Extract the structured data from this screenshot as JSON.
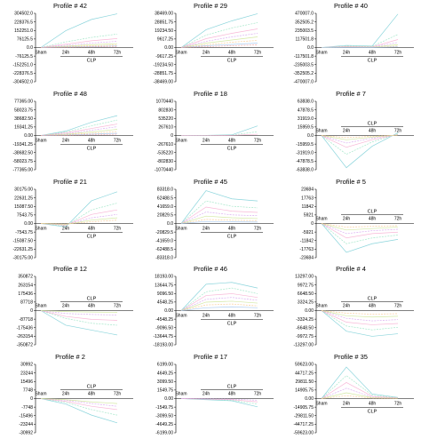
{
  "palette": [
    "#7fd0d8",
    "#9fe6c6",
    "#f7b0d3",
    "#d8a6f0",
    "#cfe59a",
    "#f9c98f",
    "#a6c8f0",
    "#f5a0a0",
    "#b4b0f0",
    "#9fd6ef",
    "#c8a2e8",
    "#ea8fd2"
  ],
  "chart_data": [
    {
      "type": "line",
      "title": "Profile # 42",
      "categories": [
        "Sham",
        "24h",
        "48h",
        "72h"
      ],
      "group_label": "CLP",
      "group_span": [
        "24h",
        "72h"
      ],
      "ylim": [
        -304502.0,
        304502.0
      ],
      "y_ticks": [
        "304502.0",
        "228376.5",
        "152251.0",
        "76125.5",
        "0.0",
        "-76125.5",
        "-152251.0",
        "-228376.5",
        "-304502.0"
      ],
      "zero_index": 4,
      "series": [
        {
          "values": [
            0,
            150000,
            250000,
            300000
          ]
        },
        {
          "values": [
            0,
            50000,
            90000,
            120000
          ]
        },
        {
          "values": [
            0,
            30000,
            60000,
            80000
          ]
        },
        {
          "values": [
            0,
            20000,
            40000,
            55000
          ]
        },
        {
          "values": [
            0,
            12000,
            25000,
            35000
          ]
        },
        {
          "values": [
            0,
            8000,
            15000,
            22000
          ]
        },
        {
          "values": [
            0,
            5000,
            9000,
            14000
          ]
        },
        {
          "values": [
            0,
            3000,
            6000,
            8000
          ]
        }
      ]
    },
    {
      "type": "line",
      "title": "Profile # 29",
      "categories": [
        "Sham",
        "24h",
        "48h",
        "72h"
      ],
      "group_label": "CLP",
      "group_span": [
        "24h",
        "72h"
      ],
      "ylim": [
        -38469.0,
        38469.0
      ],
      "y_ticks": [
        "38469.00",
        "28851.75",
        "19234.50",
        "9617.25",
        "0.00",
        "-9617.25",
        "-19234.50",
        "-28851.75",
        "-38469.00"
      ],
      "zero_index": 4,
      "series": [
        {
          "values": [
            0,
            20000,
            30000,
            38000
          ]
        },
        {
          "values": [
            0,
            14000,
            22000,
            28000
          ]
        },
        {
          "values": [
            0,
            10000,
            16000,
            21000
          ]
        },
        {
          "values": [
            0,
            7000,
            12000,
            16000
          ]
        },
        {
          "values": [
            0,
            5000,
            8500,
            12000
          ]
        },
        {
          "values": [
            0,
            3000,
            6000,
            8000
          ]
        },
        {
          "values": [
            0,
            2000,
            3500,
            5000
          ]
        },
        {
          "values": [
            0,
            1000,
            2000,
            3000
          ]
        }
      ]
    },
    {
      "type": "line",
      "title": "Profile # 40",
      "categories": [
        "Sham",
        "24h",
        "48h",
        "72h"
      ],
      "group_label": "CLP",
      "group_span": [
        "24h",
        "72h"
      ],
      "ylim": [
        -470007.0,
        470007.0
      ],
      "y_ticks": [
        "470007.0",
        "352505.2",
        "235003.5",
        "117501.8",
        "0.0",
        "-117501.8",
        "-235003.5",
        "-352505.2",
        "-470007.0"
      ],
      "zero_index": 4,
      "series": [
        {
          "values": [
            0,
            30000,
            20000,
            460000
          ]
        },
        {
          "values": [
            0,
            20000,
            15000,
            180000
          ]
        },
        {
          "values": [
            0,
            15000,
            10000,
            110000
          ]
        },
        {
          "values": [
            0,
            10000,
            8000,
            70000
          ]
        },
        {
          "values": [
            0,
            6000,
            5000,
            40000
          ]
        },
        {
          "values": [
            0,
            4000,
            3000,
            20000
          ]
        },
        {
          "values": [
            0,
            2000,
            1500,
            10000
          ]
        }
      ]
    },
    {
      "type": "line",
      "title": "Profile # 48",
      "categories": [
        "Sham",
        "24h",
        "48h",
        "72h"
      ],
      "group_label": "CLP",
      "group_span": [
        "24h",
        "72h"
      ],
      "ylim": [
        -77365.0,
        77365.0
      ],
      "y_ticks": [
        "77365.00",
        "58023.75",
        "38682.50",
        "19341.25",
        "0.00",
        "-19341.25",
        "-38682.50",
        "-58023.75",
        "-77365.00"
      ],
      "zero_index": 4,
      "series": [
        {
          "values": [
            0,
            10000,
            30000,
            45000
          ]
        },
        {
          "values": [
            0,
            8000,
            22000,
            35000
          ]
        },
        {
          "values": [
            0,
            6000,
            16000,
            26000
          ]
        },
        {
          "values": [
            0,
            4000,
            12000,
            20000
          ]
        },
        {
          "values": [
            0,
            3000,
            8000,
            14000
          ]
        },
        {
          "values": [
            0,
            2000,
            5000,
            9000
          ]
        },
        {
          "values": [
            0,
            1000,
            3000,
            5000
          ]
        },
        {
          "values": [
            0,
            500,
            1500,
            3000
          ]
        }
      ]
    },
    {
      "type": "line",
      "title": "Profile # 18",
      "categories": [
        "Sham",
        "24h",
        "48h",
        "72h"
      ],
      "group_label": "CLP",
      "group_span": [
        "24h",
        "72h"
      ],
      "ylim": [
        -1070440,
        1070440
      ],
      "y_ticks": [
        "1070440",
        "802830",
        "535220",
        "267610",
        "0",
        "-267610",
        "-535220",
        "-802830",
        "-1070440"
      ],
      "zero_index": 4,
      "series": [
        {
          "values": [
            0,
            5000,
            20000,
            300000
          ]
        },
        {
          "values": [
            0,
            3000,
            10000,
            120000
          ]
        },
        {
          "values": [
            0,
            2000,
            5000,
            40000
          ]
        }
      ]
    },
    {
      "type": "line",
      "title": "Profile # 7",
      "categories": [
        "Sham",
        "24h",
        "48h",
        "72h"
      ],
      "group_label": "CLP",
      "group_span": [
        "24h",
        "72h"
      ],
      "ylim": [
        -63838.0,
        63838.0
      ],
      "y_ticks": [
        "63838.0",
        "47878.5",
        "31919.0",
        "15959.5",
        "0.0",
        "-15959.5",
        "-31919.0",
        "-47878.5",
        "-63838.0"
      ],
      "zero_index": 4,
      "series": [
        {
          "values": [
            0,
            -60000,
            -20000,
            5000
          ]
        },
        {
          "values": [
            0,
            -35000,
            -12000,
            3000
          ]
        },
        {
          "values": [
            0,
            -22000,
            -8000,
            2000
          ]
        },
        {
          "values": [
            0,
            -14000,
            -5000,
            1500
          ]
        },
        {
          "values": [
            0,
            -8000,
            -3000,
            1000
          ]
        },
        {
          "values": [
            0,
            -4000,
            -1500,
            500
          ]
        }
      ]
    },
    {
      "type": "line",
      "title": "Profile # 21",
      "categories": [
        "Sham",
        "24h",
        "48h",
        "72h"
      ],
      "group_label": "CLP",
      "group_span": [
        "24h",
        "72h"
      ],
      "ylim": [
        -30175.0,
        30175.0
      ],
      "y_ticks": [
        "30175.00",
        "22631.25",
        "15087.50",
        "7543.75",
        "0.00",
        "-7543.75",
        "-15087.50",
        "-22631.25",
        "-30175.00"
      ],
      "zero_index": 4,
      "series": [
        {
          "values": [
            0,
            -3000,
            20000,
            28000
          ]
        },
        {
          "values": [
            0,
            -2000,
            12000,
            18000
          ]
        },
        {
          "values": [
            0,
            -1500,
            8000,
            12000
          ]
        },
        {
          "values": [
            0,
            -1000,
            5000,
            8000
          ]
        },
        {
          "values": [
            0,
            -800,
            3000,
            5000
          ]
        },
        {
          "values": [
            0,
            -500,
            1500,
            3000
          ]
        }
      ]
    },
    {
      "type": "line",
      "title": "Profile # 45",
      "categories": [
        "Sham",
        "24h",
        "48h",
        "72h"
      ],
      "group_label": "CLP",
      "group_span": [
        "24h",
        "72h"
      ],
      "ylim": [
        -83318.0,
        83318.0
      ],
      "y_ticks": [
        "83318.0",
        "62488.5",
        "41659.0",
        "20829.5",
        "0.0",
        "-20829.5",
        "-41659.0",
        "-62488.5",
        "-83318.0"
      ],
      "zero_index": 4,
      "series": [
        {
          "values": [
            0,
            80000,
            60000,
            55000
          ]
        },
        {
          "values": [
            0,
            55000,
            42000,
            38000
          ]
        },
        {
          "values": [
            0,
            40000,
            30000,
            27000
          ]
        },
        {
          "values": [
            0,
            28000,
            21000,
            19000
          ]
        },
        {
          "values": [
            0,
            18000,
            14000,
            12000
          ]
        },
        {
          "values": [
            0,
            10000,
            8000,
            7000
          ]
        },
        {
          "values": [
            0,
            5000,
            4000,
            3500
          ]
        }
      ]
    },
    {
      "type": "line",
      "title": "Profile # 5",
      "categories": [
        "Sham",
        "24h",
        "48h",
        "72h"
      ],
      "group_label": "CLP",
      "group_span": [
        "24h",
        "72h"
      ],
      "ylim": [
        -23684,
        23684
      ],
      "y_ticks": [
        "23684",
        "17763",
        "11842",
        "5921",
        "0",
        "-5921",
        "-11842",
        "-17763",
        "-23684"
      ],
      "zero_index": 4,
      "series": [
        {
          "values": [
            0,
            -20000,
            -14000,
            -11000
          ]
        },
        {
          "values": [
            0,
            -14000,
            -10000,
            -8000
          ]
        },
        {
          "values": [
            0,
            -10000,
            -7000,
            -6000
          ]
        },
        {
          "values": [
            0,
            -7000,
            -5000,
            -4000
          ]
        },
        {
          "values": [
            0,
            -4500,
            -3500,
            -2500
          ]
        },
        {
          "values": [
            0,
            -2500,
            -2000,
            -1500
          ]
        }
      ]
    },
    {
      "type": "line",
      "title": "Profile # 12",
      "categories": [
        "Sham",
        "24h",
        "48h",
        "72h"
      ],
      "group_label": "CLP",
      "group_span": [
        "24h",
        "72h"
      ],
      "ylim": [
        -350872,
        350872
      ],
      "y_ticks": [
        "350872",
        "263154",
        "175436",
        "87718",
        "0",
        "-87718",
        "-175436",
        "-263154",
        "-350872"
      ],
      "zero_index": 4,
      "series": [
        {
          "values": [
            0,
            -150000,
            -200000,
            -250000
          ]
        },
        {
          "values": [
            0,
            -80000,
            -130000,
            -150000
          ]
        },
        {
          "values": [
            0,
            -60000,
            -90000,
            -100000
          ]
        },
        {
          "values": [
            0,
            -30000,
            -40000,
            -45000
          ]
        },
        {
          "values": [
            0,
            -10000,
            -15000,
            -18000
          ]
        }
      ]
    },
    {
      "type": "line",
      "title": "Profile # 46",
      "categories": [
        "Sham",
        "24h",
        "48h",
        "72h"
      ],
      "group_label": "CLP",
      "group_span": [
        "24h",
        "72h"
      ],
      "ylim": [
        -18193.0,
        18193.0
      ],
      "y_ticks": [
        "18193.00",
        "13644.75",
        "9096.50",
        "4548.25",
        "0.00",
        "-4548.25",
        "-9096.50",
        "-13644.75",
        "-18193.00"
      ],
      "zero_index": 4,
      "series": [
        {
          "values": [
            0,
            14000,
            15000,
            12000
          ]
        },
        {
          "values": [
            0,
            10000,
            12000,
            9000
          ]
        },
        {
          "values": [
            0,
            8000,
            9000,
            7000
          ]
        },
        {
          "values": [
            0,
            6000,
            7000,
            5500
          ]
        },
        {
          "values": [
            0,
            4500,
            5000,
            4000
          ]
        },
        {
          "values": [
            0,
            3000,
            3500,
            2500
          ]
        },
        {
          "values": [
            0,
            1500,
            2000,
            1500
          ]
        }
      ]
    },
    {
      "type": "line",
      "title": "Profile # 4",
      "categories": [
        "Sham",
        "24h",
        "48h",
        "72h"
      ],
      "group_label": "CLP",
      "group_span": [
        "24h",
        "72h"
      ],
      "ylim": [
        -13297.0,
        13297.0
      ],
      "y_ticks": [
        "13297.00",
        "9972.75",
        "6648.50",
        "3324.25",
        "0.00",
        "-3324.25",
        "-6648.50",
        "-9972.75",
        "-13297.00"
      ],
      "zero_index": 4,
      "series": [
        {
          "values": [
            0,
            -8000,
            -10000,
            -9000
          ]
        },
        {
          "values": [
            0,
            -6000,
            -7500,
            -6500
          ]
        },
        {
          "values": [
            0,
            -4500,
            -5500,
            -5000
          ]
        },
        {
          "values": [
            0,
            -3000,
            -4000,
            -3500
          ]
        },
        {
          "values": [
            0,
            -2000,
            -2500,
            -2200
          ]
        },
        {
          "values": [
            0,
            -1000,
            -1400,
            -1200
          ]
        }
      ]
    },
    {
      "type": "line",
      "title": "Profile # 2",
      "categories": [
        "Sham",
        "24h",
        "48h",
        "72h"
      ],
      "group_label": "CLP",
      "group_span": [
        "24h",
        "72h"
      ],
      "ylim": [
        -30992,
        30992
      ],
      "y_ticks": [
        "30992",
        "23244",
        "15496",
        "7748",
        "0",
        "-7748",
        "-15496",
        "-23244",
        "-30992"
      ],
      "zero_index": 4,
      "series": [
        {
          "values": [
            0,
            -5000,
            -15000,
            -22000
          ]
        },
        {
          "values": [
            0,
            -3500,
            -10000,
            -15000
          ]
        },
        {
          "values": [
            0,
            -2500,
            -7000,
            -10000
          ]
        },
        {
          "values": [
            0,
            -1500,
            -4500,
            -7000
          ]
        },
        {
          "values": [
            0,
            -1000,
            -3000,
            -4500
          ]
        }
      ]
    },
    {
      "type": "line",
      "title": "Profile # 17",
      "categories": [
        "Sham",
        "24h",
        "48h",
        "72h"
      ],
      "group_label": "CLP",
      "group_span": [
        "24h",
        "72h"
      ],
      "ylim": [
        -6199.0,
        6199.0
      ],
      "y_ticks": [
        "6199.00",
        "4649.25",
        "3099.50",
        "1549.75",
        "0.00",
        "-1549.75",
        "-3099.50",
        "-4649.25",
        "-6199.00"
      ],
      "zero_index": 4,
      "series": [
        {
          "values": [
            0,
            -200,
            -400,
            -1500
          ]
        },
        {
          "values": [
            0,
            -150,
            -300,
            -1000
          ]
        },
        {
          "values": [
            0,
            -100,
            -200,
            -600
          ]
        },
        {
          "values": [
            0,
            -50,
            -100,
            -300
          ]
        }
      ]
    },
    {
      "type": "line",
      "title": "Profile # 35",
      "categories": [
        "Sham",
        "24h",
        "48h",
        "72h"
      ],
      "group_label": "CLP",
      "group_span": [
        "24h",
        "72h"
      ],
      "ylim": [
        -59623.0,
        59623.0
      ],
      "y_ticks": [
        "59623.00",
        "44717.25",
        "29811.50",
        "14905.75",
        "0.00",
        "-14905.75",
        "-29811.50",
        "-44717.25",
        "-59623.00"
      ],
      "zero_index": 4,
      "series": [
        {
          "values": [
            0,
            55000,
            8000,
            2000
          ]
        },
        {
          "values": [
            0,
            40000,
            6000,
            1500
          ]
        },
        {
          "values": [
            0,
            28000,
            4000,
            1000
          ]
        },
        {
          "values": [
            0,
            18000,
            2500,
            800
          ]
        },
        {
          "values": [
            0,
            10000,
            1500,
            500
          ]
        },
        {
          "values": [
            0,
            5000,
            800,
            300
          ]
        }
      ]
    }
  ]
}
